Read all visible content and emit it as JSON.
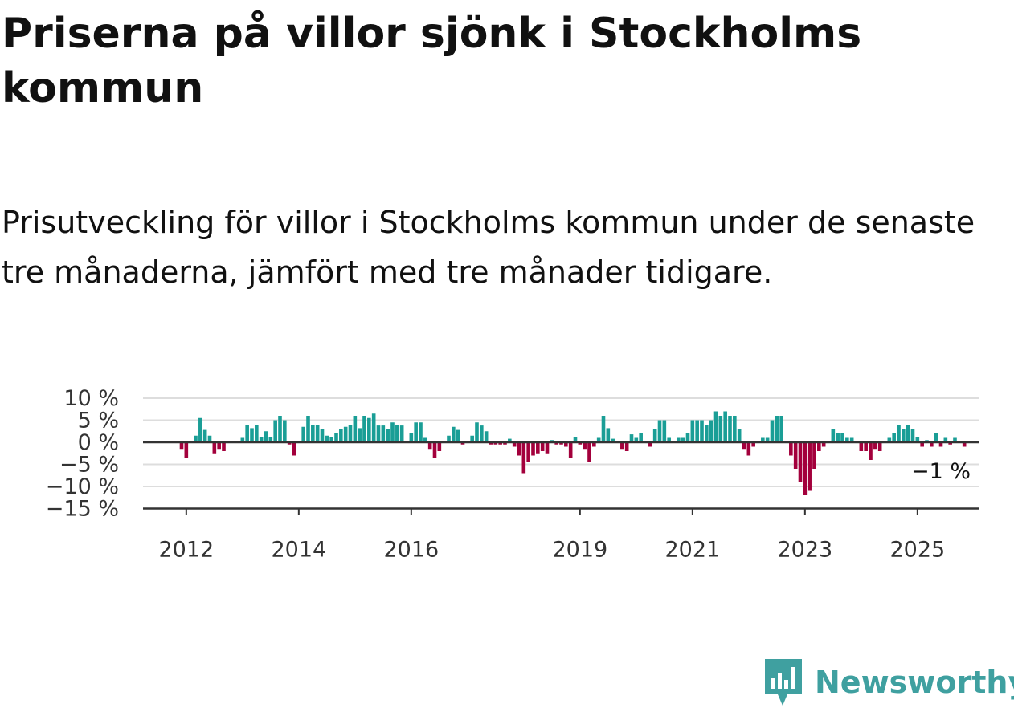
{
  "title": "Priserna på villor sjönk i Stockholms kommun",
  "subtitle": "Prisutveckling för villor i Stockholms kommun under de senaste tre månaderna, jämfört med tre månader tidigare.",
  "brand": "Newsworthy",
  "colors": {
    "positive": "#1a9e96",
    "negative": "#a3003c",
    "grid": "#dddddd",
    "axis": "#333333",
    "brand": "#3fa0a0"
  },
  "chart_data": {
    "type": "bar",
    "x_start": "2011-12",
    "frequency": "monthly",
    "ylim": [
      -15,
      10
    ],
    "y_ticks": [
      10,
      5,
      0,
      -5,
      -10,
      -15
    ],
    "y_tick_labels": [
      "10 %",
      "5 %",
      "0 %",
      "−5 %",
      "−10 %",
      "−15 %"
    ],
    "x_ticks": [
      "2012",
      "2014",
      "2016",
      "2019",
      "2021",
      "2023",
      "2025"
    ],
    "end_label": "−1 %",
    "values": [
      -1.5,
      -3.5,
      0.2,
      1.5,
      5.5,
      2.8,
      1.5,
      -2.5,
      -1.5,
      -2,
      0,
      0,
      0,
      1,
      4,
      3.2,
      4,
      1.2,
      2.5,
      1.2,
      5,
      6,
      5,
      -0.5,
      -3,
      0,
      3.5,
      6,
      4,
      4,
      3,
      1.5,
      1.2,
      2,
      3,
      3.5,
      4,
      6,
      3.2,
      6,
      5.5,
      6.5,
      3.8,
      3.8,
      3,
      4.5,
      4,
      3.8,
      0,
      2,
      4.5,
      4.5,
      1,
      -1.5,
      -3.5,
      -2,
      0,
      1.5,
      3.5,
      2.8,
      -0.5,
      0,
      1.5,
      4.5,
      3.8,
      2.5,
      -0.5,
      -0.5,
      -0.5,
      -0.5,
      0.8,
      -1,
      -3,
      -7,
      -4.5,
      -3,
      -2.5,
      -2,
      -2.5,
      0.5,
      -0.5,
      -0.5,
      -1,
      -3.5,
      1.2,
      -0.5,
      -1.5,
      -4.5,
      -1,
      1,
      6,
      3.2,
      0.8,
      0,
      -1.5,
      -2,
      1.8,
      1,
      2,
      0.2,
      -1,
      3,
      5,
      5,
      1,
      0.2,
      1,
      1,
      2,
      5,
      5,
      5,
      4,
      5,
      7,
      6,
      7,
      6,
      6,
      3,
      -1.5,
      -3,
      -1,
      0,
      1,
      1,
      5,
      6,
      6,
      0,
      -3,
      -6,
      -9,
      -12,
      -11,
      -6,
      -2,
      -1,
      0,
      3,
      2,
      2,
      1,
      1,
      0,
      -2,
      -2,
      -4,
      -1.5,
      -2,
      0.2,
      1,
      2,
      4,
      3,
      4,
      3,
      1.2,
      -1,
      0.5,
      -1,
      2,
      -1,
      1,
      -0.5,
      1,
      0,
      -1
    ]
  }
}
